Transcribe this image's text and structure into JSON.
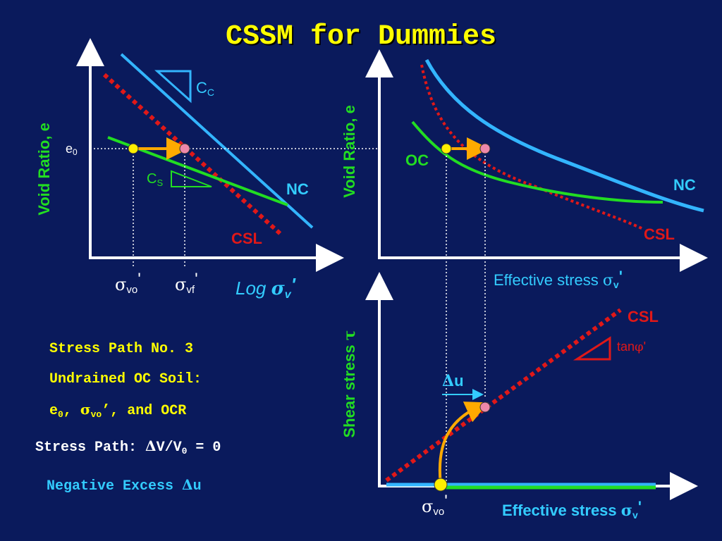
{
  "title": "CSSM for Dummies",
  "colors": {
    "background": "#0a1a5c",
    "title": "#ffff00",
    "axis": "#ffffff",
    "nc_line": "#33b5ff",
    "cs_line": "#22dd22",
    "csl": "#e01818",
    "label_cyan": "#33ccff",
    "label_green": "#22dd22",
    "text_yellow": "#ffff00",
    "text_white": "#ffffff",
    "arrow": "#ffaa00",
    "point_start": "#ffee00",
    "point_end": "#ee88aa"
  },
  "panel_e_log": {
    "ylabel": "Void Ratio, e",
    "e0_label": "e",
    "e0_sub": "0",
    "cc_label": "C",
    "cc_sub": "C",
    "cs_label": "C",
    "cs_sub": "S",
    "nc_label": "NC",
    "csl_label": "CSL",
    "svo_sub": "vo",
    "svo_prime": "'",
    "svf_sub": "vf",
    "svf_prime": "'",
    "xlabel_prefix": "Log ",
    "xlabel_sub": "v",
    "xlabel_prime": "'"
  },
  "panel_e_lin": {
    "ylabel": "Void Ratio, e",
    "oc_label": "OC",
    "nc_label": "NC",
    "csl_label": "CSL",
    "xlabel_prefix": "Effective stress ",
    "xlabel_sub": "v",
    "xlabel_prime": "'"
  },
  "panel_shear": {
    "ylabel": "Shear stress ",
    "ylabel_symbol": "τ",
    "csl_label": "CSL",
    "tanphi_label": "tan",
    "tanphi_prime": "'",
    "du_label": "u",
    "svo_sub": "vo",
    "svo_prime": "'",
    "xlabel_prefix": "Effective stress ",
    "xlabel_sub": "v",
    "xlabel_prime": "'"
  },
  "notes": {
    "line1": "Stress Path No. 3",
    "line2": "Undrained OC Soil:",
    "line3_e": "e",
    "line3_e_sub": "0",
    "line3_sep": ", ",
    "line3_sigma_sub": "vo",
    "line3_rest": "’, and OCR",
    "line4_prefix": "Stress Path: ",
    "line4_mid": "V/V",
    "line4_sub": "0",
    "line4_rest": " = 0",
    "line5_prefix": "Negative Excess ",
    "line5_u": "u"
  }
}
